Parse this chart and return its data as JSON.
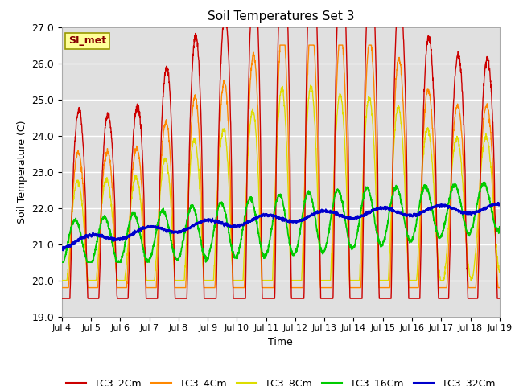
{
  "title": "Soil Temperatures Set 3",
  "xlabel": "Time",
  "ylabel": "Soil Temperature (C)",
  "ylim": [
    19.0,
    27.0
  ],
  "yticks": [
    19.0,
    20.0,
    21.0,
    22.0,
    23.0,
    24.0,
    25.0,
    26.0,
    27.0
  ],
  "xtick_labels": [
    "Jul 4",
    "Jul 5",
    "Jul 6",
    "Jul 7",
    "Jul 8",
    "Jul 9",
    "Jul 10",
    "Jul 11",
    "Jul 12",
    "Jul 13",
    "Jul 14",
    "Jul 15",
    "Jul 16",
    "Jul 17",
    "Jul 18",
    "Jul 19"
  ],
  "colors": {
    "TC3_2Cm": "#cc0000",
    "TC3_4Cm": "#ff8800",
    "TC3_8Cm": "#dddd00",
    "TC3_16Cm": "#00cc00",
    "TC3_32Cm": "#0000cc"
  },
  "bg_color": "#e0e0e0",
  "annotation_text": "SI_met",
  "annotation_color": "#880000",
  "annotation_bg": "#ffff99"
}
